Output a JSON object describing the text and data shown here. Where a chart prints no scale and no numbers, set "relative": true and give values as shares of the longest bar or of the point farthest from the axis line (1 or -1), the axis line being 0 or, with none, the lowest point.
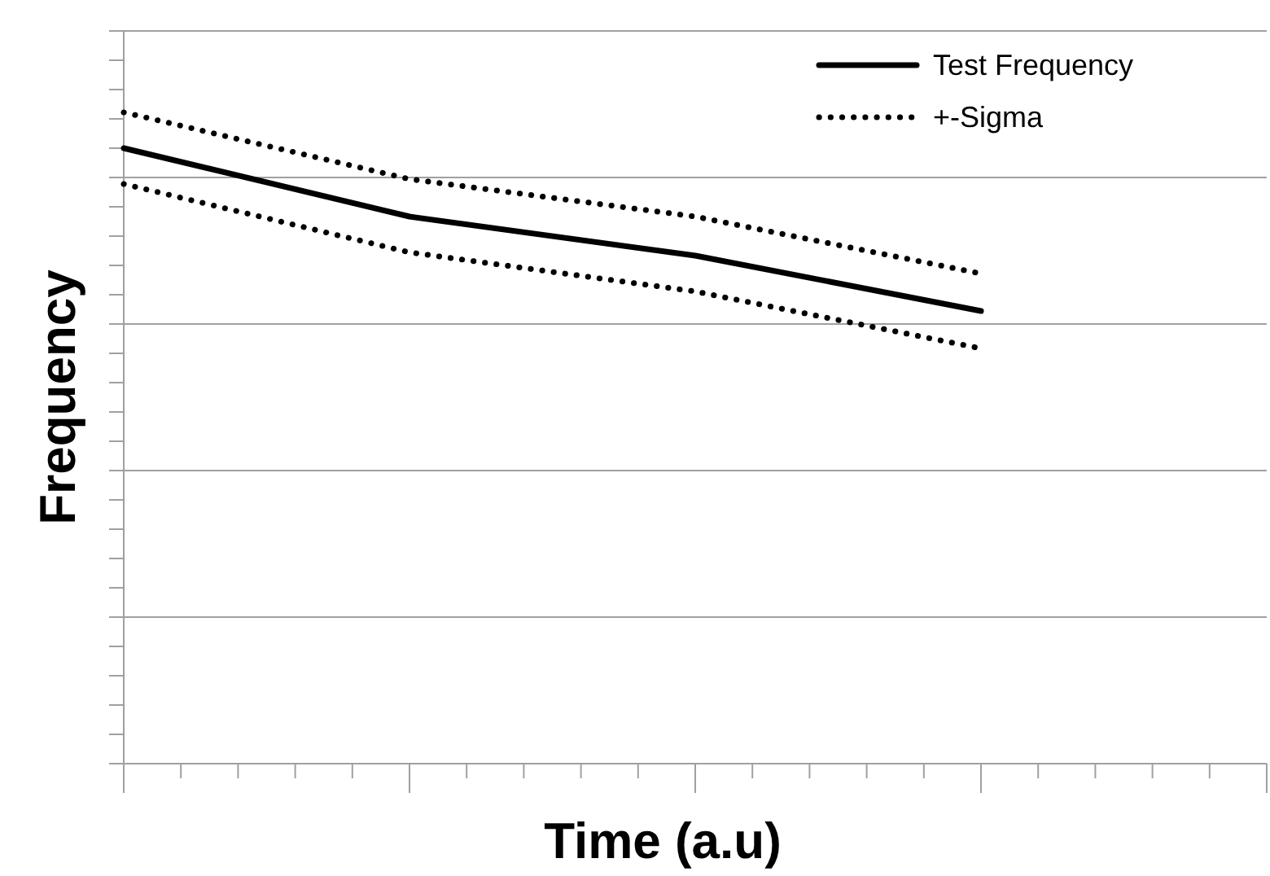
{
  "chart_data": {
    "type": "line",
    "relative": true,
    "xlabel": "Time (a.u)",
    "ylabel": "Frequency",
    "categories": [
      null,
      null,
      null,
      null
    ],
    "grid": "y",
    "legend": "top right",
    "series": [
      {
        "name": "Test Frequency",
        "color": "#000000",
        "line_style": "solid",
        "values": [
          0.945,
          0.84,
          0.78,
          0.695
        ]
      },
      {
        "name": "+-Sigma",
        "color": "#000000",
        "line_style": "dotted",
        "values": [
          1,
          0.8975,
          0.84,
          0.7525
        ]
      },
      {
        "color": "#000000",
        "line_style": "dotted",
        "values": [
          0.89,
          0.785,
          0.725,
          0.6375
        ]
      }
    ]
  }
}
